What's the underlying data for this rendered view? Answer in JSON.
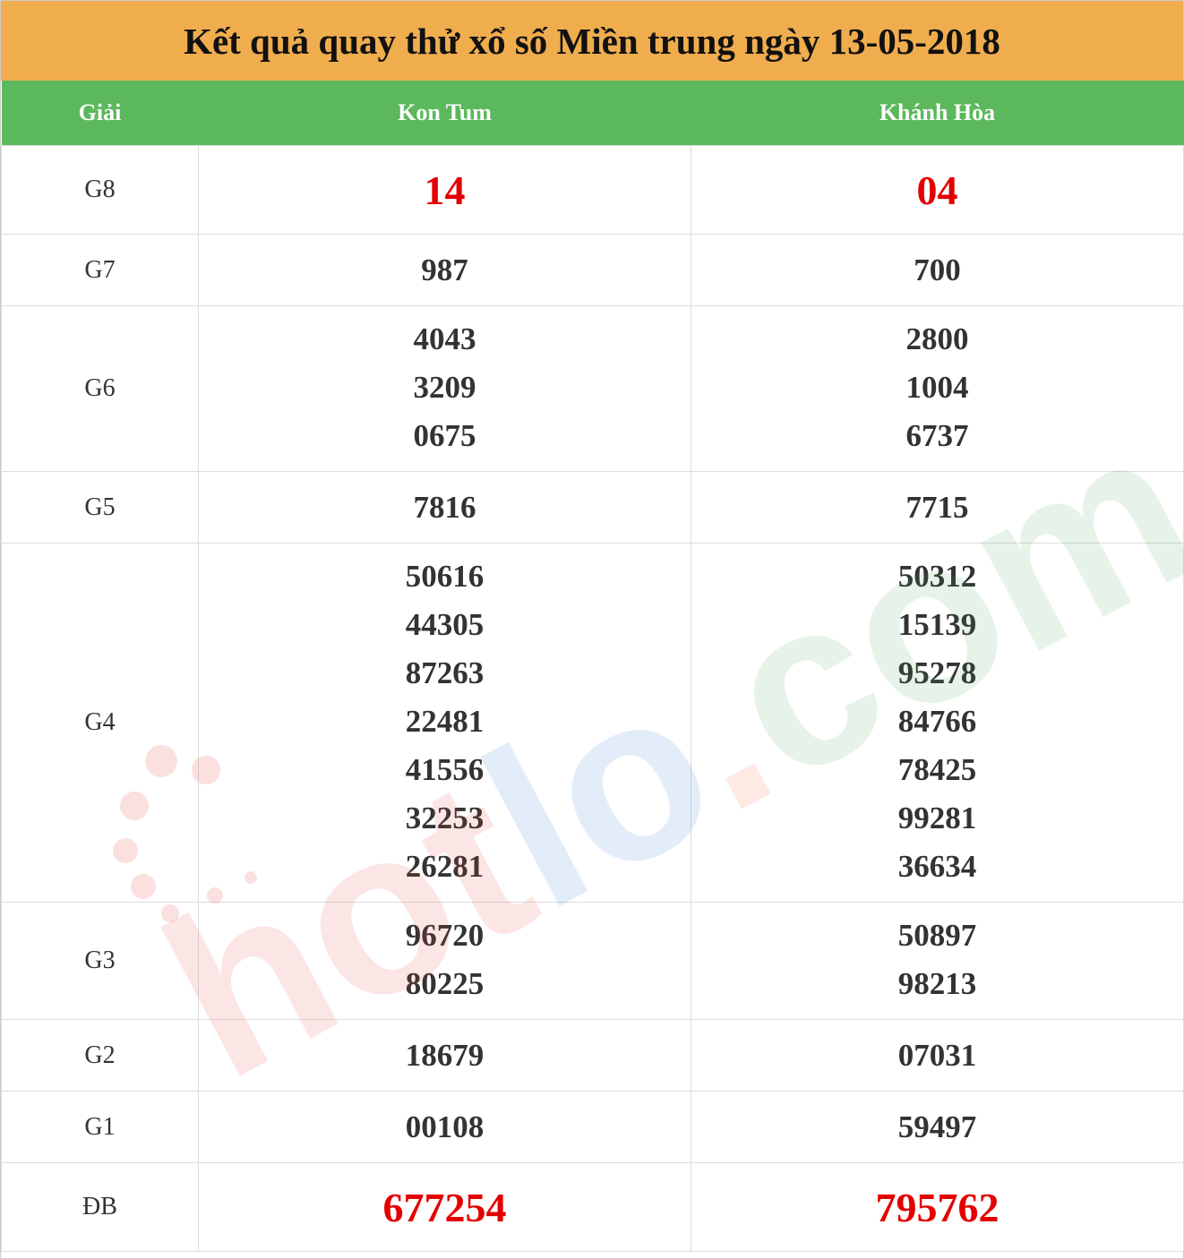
{
  "title": "Kết quả quay thử xổ số Miền trung ngày 13-05-2018",
  "headers": [
    "Giải",
    "Kon Tum",
    "Khánh Hòa"
  ],
  "watermark": "hotlo.com",
  "colors": {
    "title_bg": "#f0ad4e",
    "header_bg": "#5cb85c",
    "highlight": "#e30000"
  },
  "rows": [
    {
      "prize": "G8",
      "kontum": [
        "14"
      ],
      "khanhhoa": [
        "04"
      ]
    },
    {
      "prize": "G7",
      "kontum": [
        "987"
      ],
      "khanhhoa": [
        "700"
      ]
    },
    {
      "prize": "G6",
      "kontum": [
        "4043",
        "3209",
        "0675"
      ],
      "khanhhoa": [
        "2800",
        "1004",
        "6737"
      ]
    },
    {
      "prize": "G5",
      "kontum": [
        "7816"
      ],
      "khanhhoa": [
        "7715"
      ]
    },
    {
      "prize": "G4",
      "kontum": [
        "50616",
        "44305",
        "87263",
        "22481",
        "41556",
        "32253",
        "26281"
      ],
      "khanhhoa": [
        "50312",
        "15139",
        "95278",
        "84766",
        "78425",
        "99281",
        "36634"
      ]
    },
    {
      "prize": "G3",
      "kontum": [
        "96720",
        "80225"
      ],
      "khanhhoa": [
        "50897",
        "98213"
      ]
    },
    {
      "prize": "G2",
      "kontum": [
        "18679"
      ],
      "khanhhoa": [
        "07031"
      ]
    },
    {
      "prize": "G1",
      "kontum": [
        "00108"
      ],
      "khanhhoa": [
        "59497"
      ]
    },
    {
      "prize": "ĐB",
      "kontum": [
        "677254"
      ],
      "khanhhoa": [
        "795762"
      ]
    }
  ]
}
